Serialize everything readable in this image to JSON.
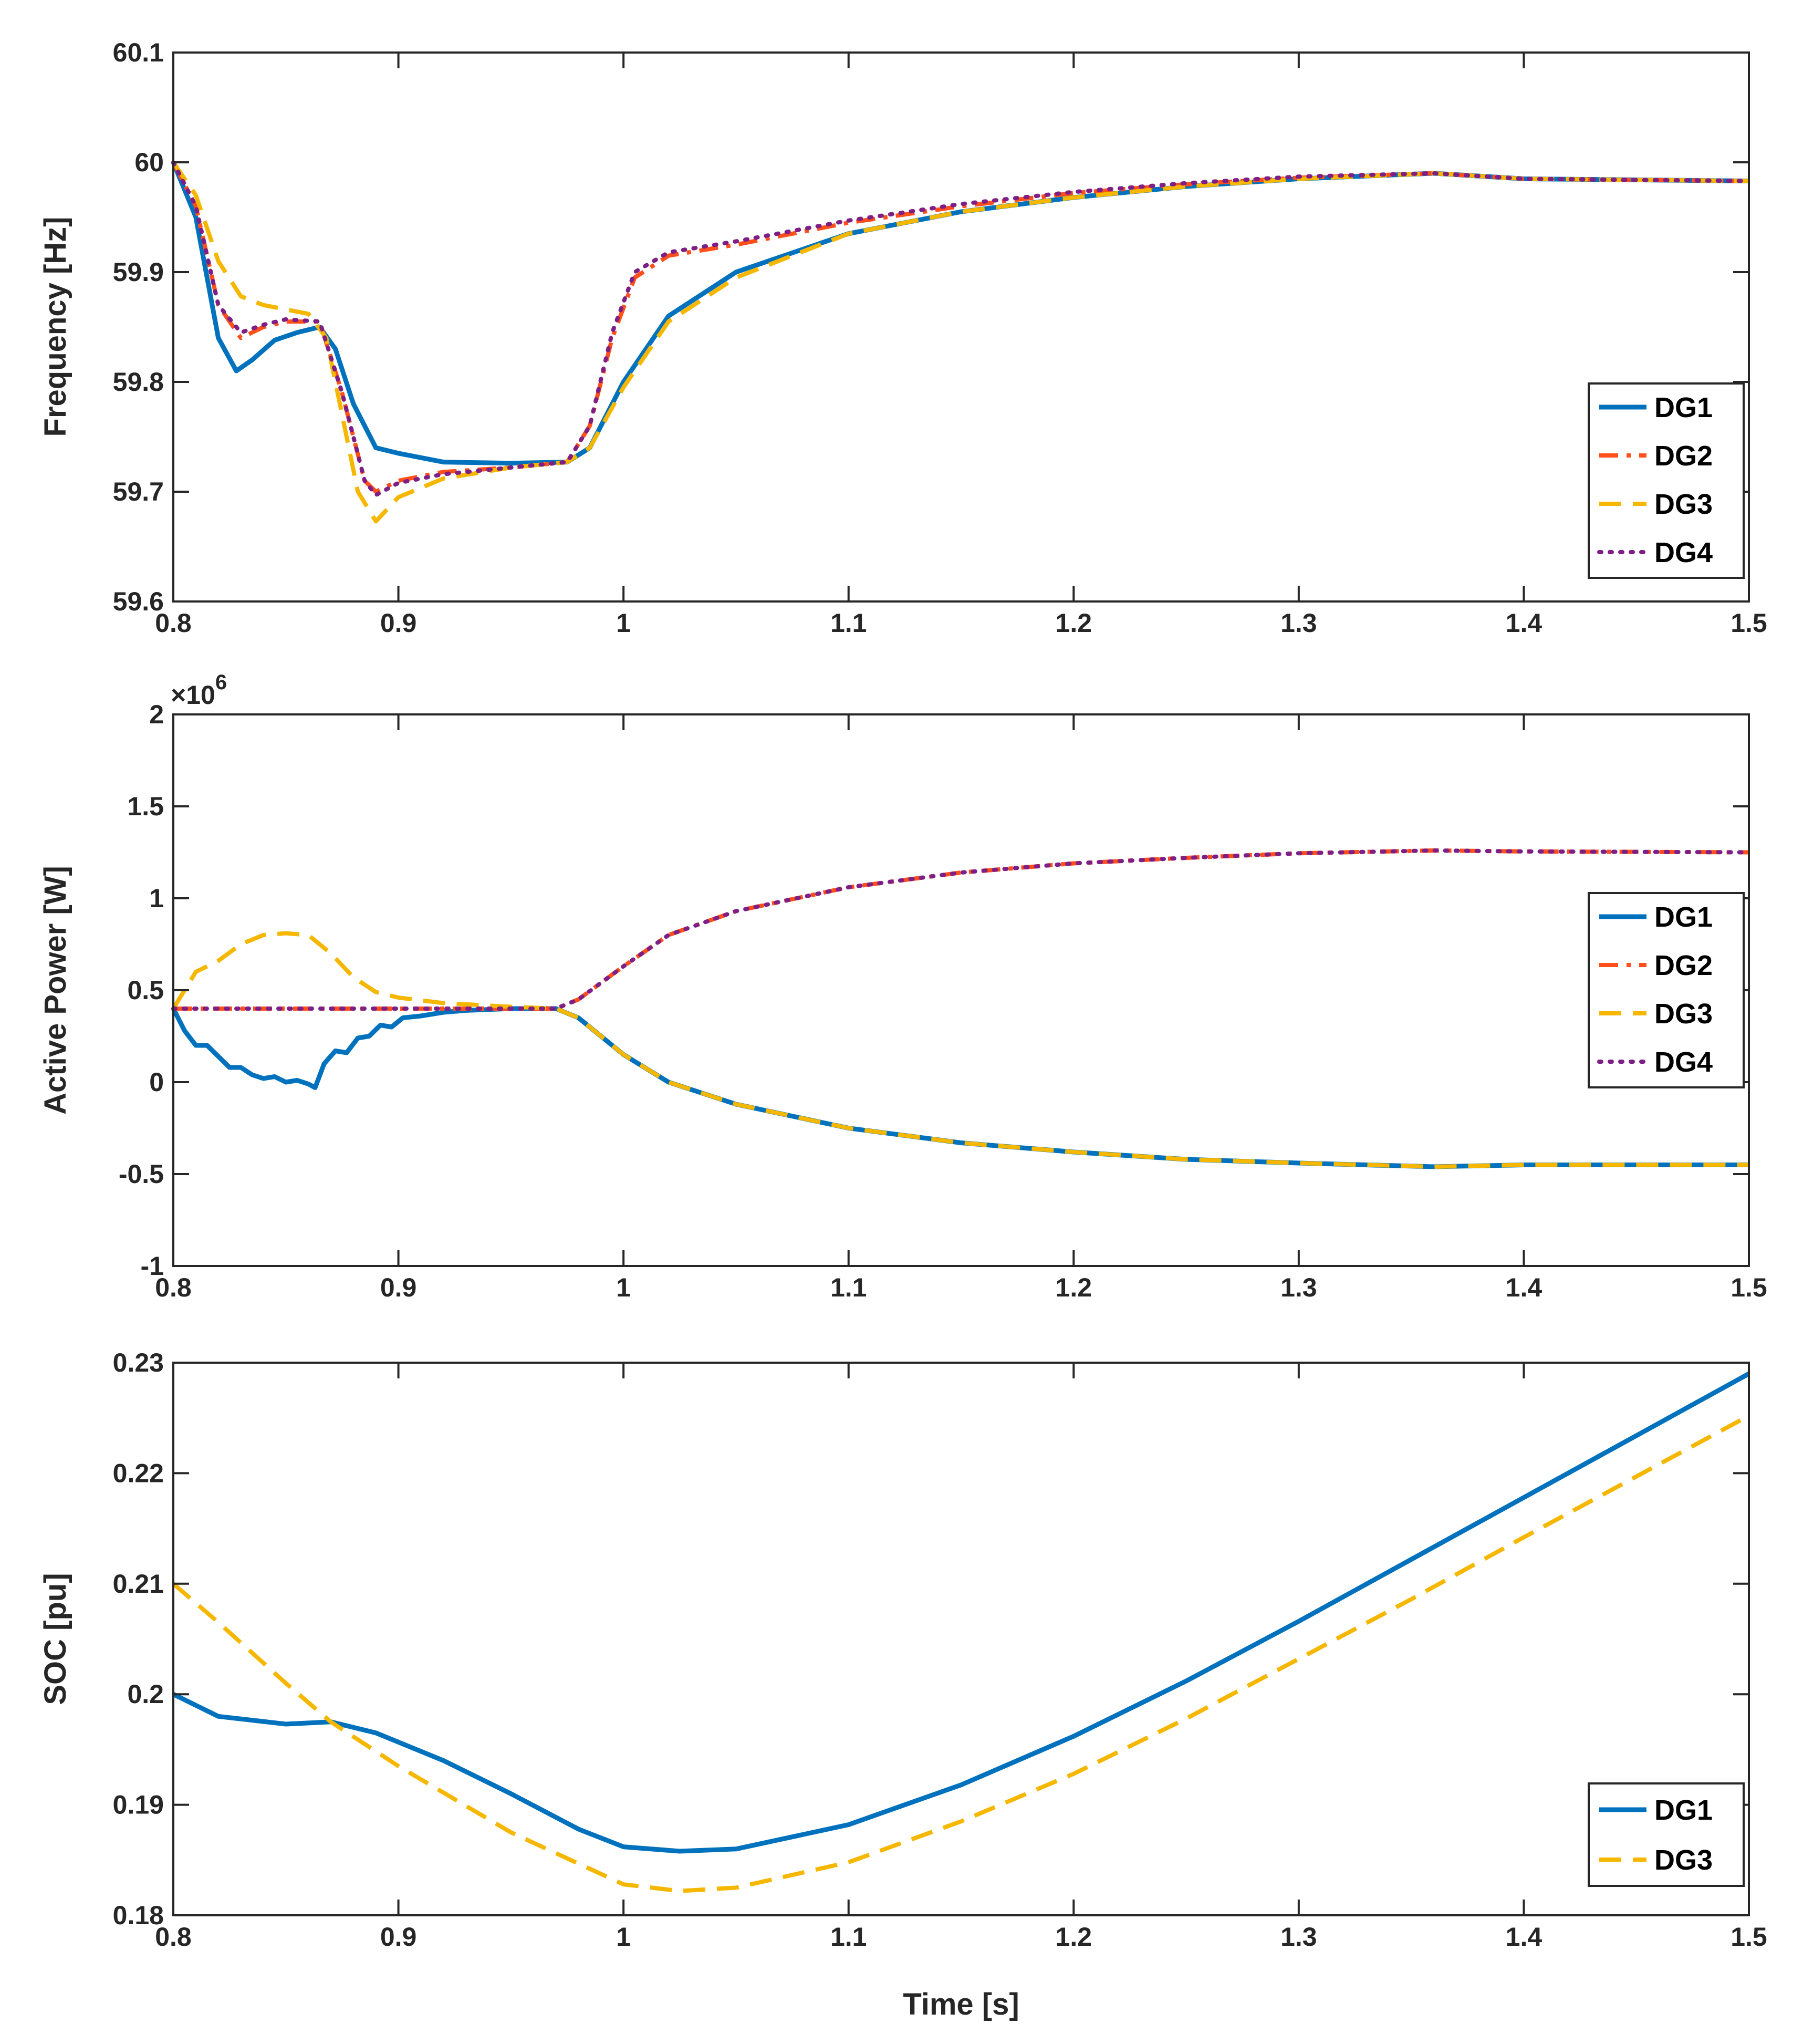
{
  "colors": {
    "DG1": "#0072BD",
    "DG2": "#FF4F1A",
    "DG3": "#F5B700",
    "DG4": "#7E1F86"
  },
  "chart_data": [
    {
      "id": "frequency",
      "type": "line",
      "ylabel": "Frequency [Hz]",
      "xlabel": "",
      "xlim": [
        0.8,
        1.5
      ],
      "ylim": [
        59.6,
        60.1
      ],
      "xticks": [
        0.8,
        0.9,
        1.0,
        1.1,
        1.2,
        1.3,
        1.4,
        1.5
      ],
      "xtick_labels": [
        "0.8",
        "0.9",
        "1",
        "1.1",
        "1.2",
        "1.3",
        "1.4",
        "1.5"
      ],
      "yticks": [
        59.6,
        59.7,
        59.8,
        59.9,
        60.0,
        60.1
      ],
      "ytick_labels": [
        "59.6",
        "59.7",
        "59.8",
        "59.9",
        "60",
        "60.1"
      ],
      "legend": "bottom-right",
      "series": [
        {
          "name": "DG1",
          "dash": "solid",
          "x": [
            0.8,
            0.81,
            0.82,
            0.828,
            0.835,
            0.845,
            0.855,
            0.865,
            0.872,
            0.88,
            0.89,
            0.9,
            0.92,
            0.95,
            0.975,
            0.985,
            1.0,
            1.02,
            1.05,
            1.1,
            1.15,
            1.2,
            1.25,
            1.3,
            1.36,
            1.4,
            1.5
          ],
          "y": [
            60.0,
            59.95,
            59.84,
            59.81,
            59.82,
            59.838,
            59.845,
            59.85,
            59.83,
            59.78,
            59.74,
            59.735,
            59.727,
            59.726,
            59.727,
            59.74,
            59.8,
            59.86,
            59.9,
            59.935,
            59.955,
            59.968,
            59.978,
            59.985,
            59.99,
            59.985,
            59.983
          ]
        },
        {
          "name": "DG2",
          "dash": "dashdot",
          "x": [
            0.8,
            0.81,
            0.82,
            0.83,
            0.84,
            0.85,
            0.865,
            0.875,
            0.885,
            0.89,
            0.9,
            0.92,
            0.95,
            0.975,
            0.985,
            0.995,
            1.005,
            1.02,
            1.05,
            1.1,
            1.15,
            1.2,
            1.25,
            1.3,
            1.36,
            1.4,
            1.5
          ],
          "y": [
            60.0,
            59.96,
            59.87,
            59.84,
            59.85,
            59.855,
            59.855,
            59.79,
            59.71,
            59.7,
            59.71,
            59.718,
            59.722,
            59.727,
            59.76,
            59.84,
            59.895,
            59.915,
            59.925,
            59.945,
            59.96,
            59.972,
            59.98,
            59.986,
            59.99,
            59.985,
            59.983
          ]
        },
        {
          "name": "DG3",
          "dash": "dashed",
          "x": [
            0.8,
            0.81,
            0.82,
            0.83,
            0.84,
            0.85,
            0.86,
            0.868,
            0.875,
            0.882,
            0.89,
            0.9,
            0.92,
            0.95,
            0.975,
            0.985,
            1.0,
            1.02,
            1.05,
            1.1,
            1.15,
            1.2,
            1.25,
            1.3,
            1.36,
            1.4,
            1.5
          ],
          "y": [
            60.0,
            59.97,
            59.91,
            59.878,
            59.87,
            59.866,
            59.862,
            59.84,
            59.77,
            59.7,
            59.673,
            59.695,
            59.712,
            59.722,
            59.727,
            59.74,
            59.795,
            59.855,
            59.895,
            59.935,
            59.955,
            59.968,
            59.978,
            59.985,
            59.99,
            59.985,
            59.983
          ]
        },
        {
          "name": "DG4",
          "dash": "dotted",
          "x": [
            0.8,
            0.81,
            0.82,
            0.83,
            0.84,
            0.85,
            0.865,
            0.875,
            0.885,
            0.89,
            0.9,
            0.92,
            0.95,
            0.975,
            0.985,
            0.995,
            1.005,
            1.02,
            1.05,
            1.1,
            1.15,
            1.2,
            1.25,
            1.3,
            1.36,
            1.4,
            1.5
          ],
          "y": [
            60.0,
            59.96,
            59.87,
            59.845,
            59.852,
            59.857,
            59.855,
            59.79,
            59.71,
            59.697,
            59.708,
            59.716,
            59.722,
            59.727,
            59.76,
            59.845,
            59.9,
            59.918,
            59.928,
            59.947,
            59.962,
            59.973,
            59.981,
            59.987,
            59.99,
            59.985,
            59.983
          ]
        }
      ]
    },
    {
      "id": "active-power",
      "type": "line",
      "ylabel": "Active Power [W]",
      "xlabel": "",
      "exponent_label": "×10",
      "exponent_power": "6",
      "xlim": [
        0.8,
        1.5
      ],
      "ylim": [
        -1,
        2
      ],
      "xticks": [
        0.8,
        0.9,
        1.0,
        1.1,
        1.2,
        1.3,
        1.4,
        1.5
      ],
      "xtick_labels": [
        "0.8",
        "0.9",
        "1",
        "1.1",
        "1.2",
        "1.3",
        "1.4",
        "1.5"
      ],
      "yticks": [
        -1,
        -0.5,
        0,
        0.5,
        1,
        1.5,
        2
      ],
      "ytick_labels": [
        "-1",
        "-0.5",
        "0",
        "0.5",
        "1",
        "1.5",
        "2"
      ],
      "legend": "right",
      "series": [
        {
          "name": "DG1",
          "dash": "solid",
          "x": [
            0.8,
            0.805,
            0.81,
            0.815,
            0.82,
            0.825,
            0.83,
            0.835,
            0.84,
            0.845,
            0.85,
            0.855,
            0.86,
            0.863,
            0.867,
            0.872,
            0.877,
            0.882,
            0.887,
            0.892,
            0.897,
            0.902,
            0.91,
            0.92,
            0.93,
            0.95,
            0.97,
            0.98,
            1.0,
            1.02,
            1.05,
            1.1,
            1.15,
            1.2,
            1.25,
            1.3,
            1.36,
            1.4,
            1.5
          ],
          "y": [
            0.4,
            0.28,
            0.2,
            0.2,
            0.14,
            0.08,
            0.08,
            0.04,
            0.02,
            0.03,
            0.0,
            0.01,
            -0.01,
            -0.03,
            0.1,
            0.17,
            0.16,
            0.24,
            0.25,
            0.31,
            0.3,
            0.35,
            0.36,
            0.38,
            0.39,
            0.4,
            0.4,
            0.35,
            0.15,
            0.0,
            -0.12,
            -0.25,
            -0.33,
            -0.38,
            -0.42,
            -0.44,
            -0.46,
            -0.45,
            -0.45
          ]
        },
        {
          "name": "DG2",
          "dash": "dashdot",
          "x": [
            0.8,
            0.9,
            0.97,
            0.98,
            1.0,
            1.02,
            1.05,
            1.1,
            1.15,
            1.2,
            1.25,
            1.3,
            1.36,
            1.4,
            1.5
          ],
          "y": [
            0.4,
            0.4,
            0.4,
            0.45,
            0.63,
            0.8,
            0.93,
            1.06,
            1.14,
            1.19,
            1.22,
            1.245,
            1.26,
            1.255,
            1.25
          ]
        },
        {
          "name": "DG3",
          "dash": "dashed",
          "x": [
            0.8,
            0.81,
            0.82,
            0.83,
            0.84,
            0.85,
            0.86,
            0.87,
            0.88,
            0.89,
            0.9,
            0.92,
            0.95,
            0.97,
            0.98,
            1.0,
            1.02,
            1.05,
            1.1,
            1.15,
            1.2,
            1.25,
            1.3,
            1.36,
            1.4,
            1.5
          ],
          "y": [
            0.4,
            0.6,
            0.66,
            0.75,
            0.8,
            0.81,
            0.8,
            0.7,
            0.57,
            0.49,
            0.46,
            0.43,
            0.41,
            0.4,
            0.35,
            0.15,
            0.0,
            -0.12,
            -0.25,
            -0.33,
            -0.38,
            -0.42,
            -0.44,
            -0.46,
            -0.45,
            -0.45
          ]
        },
        {
          "name": "DG4",
          "dash": "dotted",
          "x": [
            0.8,
            0.9,
            0.97,
            0.98,
            1.0,
            1.02,
            1.05,
            1.1,
            1.15,
            1.2,
            1.25,
            1.3,
            1.36,
            1.4,
            1.5
          ],
          "y": [
            0.4,
            0.4,
            0.4,
            0.45,
            0.63,
            0.8,
            0.93,
            1.06,
            1.14,
            1.19,
            1.22,
            1.245,
            1.26,
            1.255,
            1.25
          ]
        }
      ]
    },
    {
      "id": "soc",
      "type": "line",
      "ylabel": "SOC [pu]",
      "xlabel": "Time [s]",
      "xlim": [
        0.8,
        1.5
      ],
      "ylim": [
        0.18,
        0.23
      ],
      "xticks": [
        0.8,
        0.9,
        1.0,
        1.1,
        1.2,
        1.3,
        1.4,
        1.5
      ],
      "xtick_labels": [
        "0.8",
        "0.9",
        "1",
        "1.1",
        "1.2",
        "1.3",
        "1.4",
        "1.5"
      ],
      "yticks": [
        0.18,
        0.19,
        0.2,
        0.21,
        0.22,
        0.23
      ],
      "ytick_labels": [
        "0.18",
        "0.19",
        "0.2",
        "0.21",
        "0.22",
        "0.23"
      ],
      "legend": "bottom-right",
      "series": [
        {
          "name": "DG1",
          "dash": "solid",
          "x": [
            0.8,
            0.82,
            0.85,
            0.87,
            0.89,
            0.92,
            0.95,
            0.98,
            1.0,
            1.025,
            1.05,
            1.1,
            1.15,
            1.2,
            1.25,
            1.3,
            1.35,
            1.4,
            1.45,
            1.5
          ],
          "y": [
            0.2,
            0.198,
            0.1973,
            0.1975,
            0.1965,
            0.194,
            0.191,
            0.1878,
            0.1862,
            0.1858,
            0.186,
            0.1882,
            0.1918,
            0.1962,
            0.2012,
            0.2066,
            0.2122,
            0.2178,
            0.2234,
            0.229
          ]
        },
        {
          "name": "DG3",
          "dash": "dashed",
          "x": [
            0.8,
            0.82,
            0.85,
            0.87,
            0.9,
            0.95,
            1.0,
            1.025,
            1.05,
            1.1,
            1.15,
            1.2,
            1.25,
            1.3,
            1.35,
            1.4,
            1.45,
            1.5
          ],
          "y": [
            0.21,
            0.2065,
            0.201,
            0.1975,
            0.1935,
            0.1875,
            0.1828,
            0.1822,
            0.1825,
            0.1848,
            0.1885,
            0.1928,
            0.1978,
            0.2032,
            0.2086,
            0.2142,
            0.2197,
            0.2252
          ]
        }
      ]
    }
  ]
}
